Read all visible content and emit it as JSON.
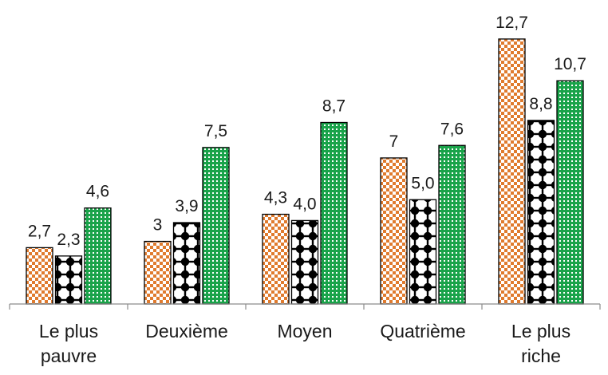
{
  "chart_data": {
    "type": "bar",
    "title": "",
    "xlabel": "",
    "ylabel": "",
    "categories": [
      [
        "Le plus",
        "pauvre"
      ],
      [
        "Deuxième"
      ],
      [
        "Moyen"
      ],
      [
        "Quatrième"
      ],
      [
        "Le plus",
        "riche"
      ]
    ],
    "series": [
      {
        "pattern": "checker-orange",
        "color": "#e07b2e",
        "values": [
          2.7,
          3,
          4.3,
          7,
          12.7
        ],
        "labels": [
          "2,7",
          "3",
          "4,3",
          "7",
          "12,7"
        ]
      },
      {
        "pattern": "black-dots",
        "color": "#000000",
        "values": [
          2.3,
          3.9,
          4.0,
          5.0,
          8.8
        ],
        "labels": [
          "2,3",
          "3,9",
          "4,0",
          "5,0",
          "8,8"
        ]
      },
      {
        "pattern": "green-mesh",
        "color": "#1aa34a",
        "values": [
          4.6,
          7.5,
          8.7,
          7.6,
          10.7
        ],
        "labels": [
          "4,6",
          "7,5",
          "8,7",
          "7,6",
          "10,7"
        ]
      }
    ],
    "ylim": [
      0,
      12.7
    ],
    "grid": false,
    "legend": "none"
  }
}
